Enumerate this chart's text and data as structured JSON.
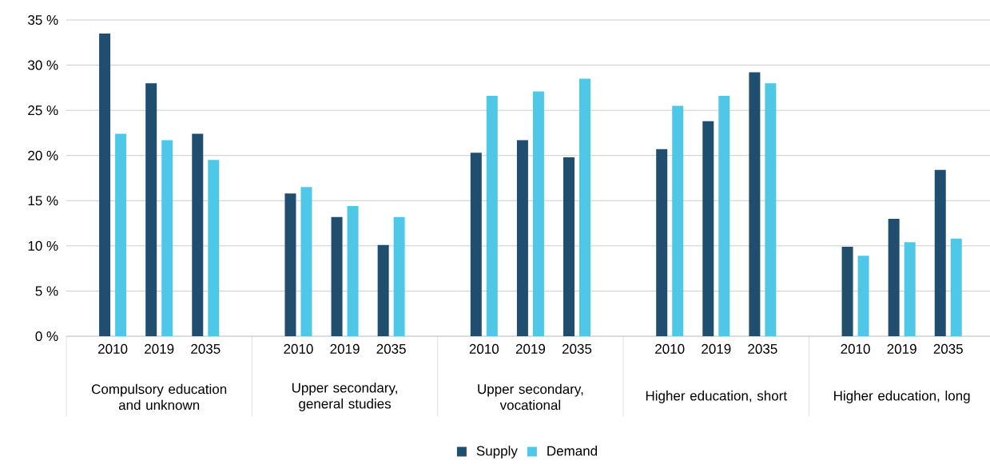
{
  "chart_data": {
    "type": "bar",
    "categories": [
      "2010",
      "2019",
      "2035",
      "2010",
      "2019",
      "2035",
      "2010",
      "2019",
      "2035",
      "2010",
      "2019",
      "2035",
      "2010",
      "2019",
      "2035"
    ],
    "annotations": [
      "Compulsory education and unknown",
      "Upper secondary, general studies",
      "Upper secondary, vocational",
      "Higher education, short",
      "Higher education, long"
    ],
    "series": [
      {
        "name": "Supply",
        "color": "#1f4e6e",
        "values": [
          33.5,
          28.0,
          22.4,
          15.8,
          13.2,
          10.1,
          20.3,
          21.7,
          19.8,
          20.7,
          23.8,
          29.2,
          9.9,
          13.0,
          18.4
        ]
      },
      {
        "name": "Demand",
        "color": "#4fc8e8",
        "values": [
          22.4,
          21.7,
          19.5,
          16.5,
          14.4,
          13.2,
          26.6,
          27.1,
          28.5,
          25.5,
          26.6,
          28.0,
          8.9,
          10.4,
          10.8
        ]
      }
    ],
    "ylim": [
      0,
      35
    ],
    "yticks": [
      {
        "value": 0,
        "label": "0 %"
      },
      {
        "value": 5,
        "label": "5 %"
      },
      {
        "value": 10,
        "label": "10 %"
      },
      {
        "value": 15,
        "label": "15 %"
      },
      {
        "value": 20,
        "label": "20 %"
      },
      {
        "value": 25,
        "label": "25 %"
      },
      {
        "value": 30,
        "label": "30 %"
      },
      {
        "value": 35,
        "label": "35 %"
      }
    ],
    "grid": "y",
    "legend": "bottom"
  }
}
